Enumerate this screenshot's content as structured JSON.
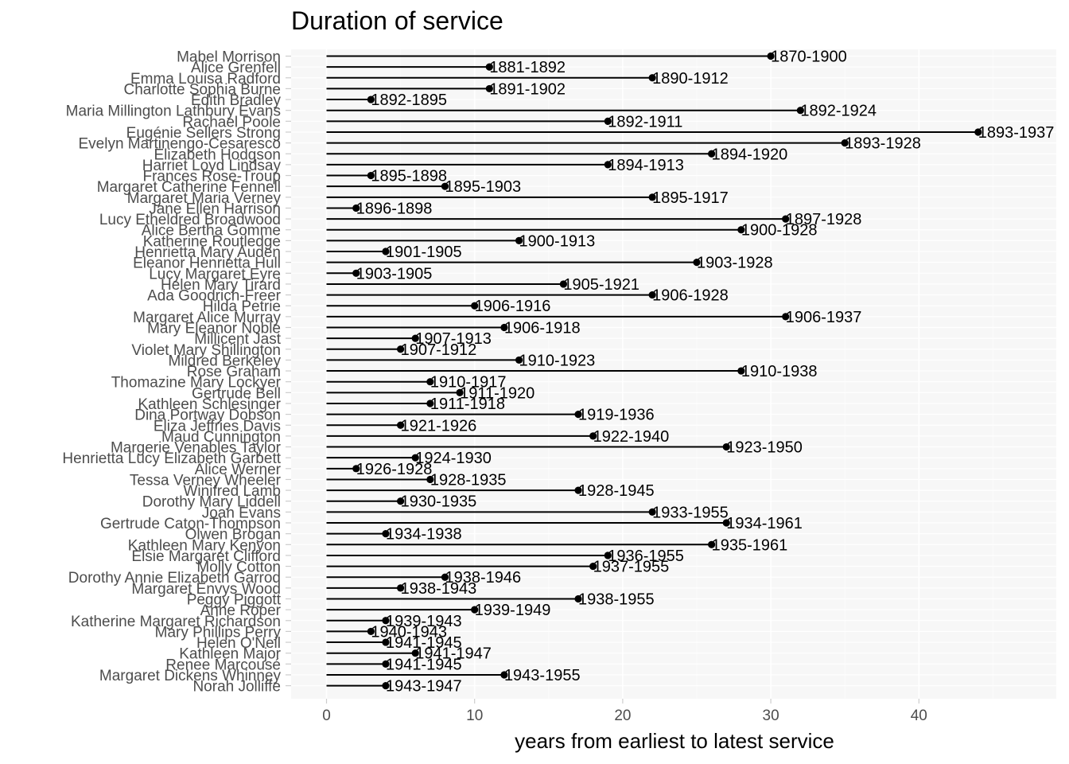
{
  "chart_data": {
    "type": "lollipop",
    "title": "Duration of service",
    "xlabel": "years from earliest to latest service",
    "ylabel": "",
    "xlim": [
      -2.2,
      49
    ],
    "xticks": [
      0,
      10,
      20,
      30,
      40
    ],
    "grid": true,
    "legend": "none",
    "rows": [
      {
        "name": "Mabel Morrison",
        "years": 30,
        "label": "1870-1900"
      },
      {
        "name": "Alice Grenfell",
        "years": 11,
        "label": "1881-1892"
      },
      {
        "name": "Emma Louisa Radford",
        "years": 22,
        "label": "1890-1912"
      },
      {
        "name": "Charlotte Sophia Burne",
        "years": 11,
        "label": "1891-1902"
      },
      {
        "name": "Edith Bradley",
        "years": 3,
        "label": "1892-1895"
      },
      {
        "name": "Maria Millington Lathbury Evans",
        "years": 32,
        "label": "1892-1924"
      },
      {
        "name": "Rachael Poole",
        "years": 19,
        "label": "1892-1911"
      },
      {
        "name": "Eugénie Sellers Strong",
        "years": 44,
        "label": "1893-1937"
      },
      {
        "name": "Evelyn Martinengo-Cesaresco",
        "years": 35,
        "label": "1893-1928"
      },
      {
        "name": "Elizabeth Hodgson",
        "years": 26,
        "label": "1894-1920"
      },
      {
        "name": "Harriet Loyd Lindsay",
        "years": 19,
        "label": "1894-1913"
      },
      {
        "name": "Frances Rose-Troup",
        "years": 3,
        "label": "1895-1898"
      },
      {
        "name": "Margaret Catherine Fennell",
        "years": 8,
        "label": "1895-1903"
      },
      {
        "name": "Margaret Maria Verney",
        "years": 22,
        "label": "1895-1917"
      },
      {
        "name": "Jane Ellen Harrison",
        "years": 2,
        "label": "1896-1898"
      },
      {
        "name": "Lucy Etheldred Broadwood",
        "years": 31,
        "label": "1897-1928"
      },
      {
        "name": "Alice Bertha Gomme",
        "years": 28,
        "label": "1900-1928"
      },
      {
        "name": "Katherine Routledge",
        "years": 13,
        "label": "1900-1913"
      },
      {
        "name": "Henrietta Mary Auden",
        "years": 4,
        "label": "1901-1905"
      },
      {
        "name": "Eleanor Henrietta Hull",
        "years": 25,
        "label": "1903-1928"
      },
      {
        "name": "Lucy Margaret Eyre",
        "years": 2,
        "label": "1903-1905"
      },
      {
        "name": "Helen Mary Tirard",
        "years": 16,
        "label": "1905-1921"
      },
      {
        "name": "Ada Goodrich-Freer",
        "years": 22,
        "label": "1906-1928"
      },
      {
        "name": "Hilda Petrie",
        "years": 10,
        "label": "1906-1916"
      },
      {
        "name": "Margaret Alice Murray",
        "years": 31,
        "label": "1906-1937"
      },
      {
        "name": "Mary Eleanor Noble",
        "years": 12,
        "label": "1906-1918"
      },
      {
        "name": "Millicent Jast",
        "years": 6,
        "label": "1907-1913"
      },
      {
        "name": "Violet Mary Shillington",
        "years": 5,
        "label": "1907-1912"
      },
      {
        "name": "Mildred Berkeley",
        "years": 13,
        "label": "1910-1923"
      },
      {
        "name": "Rose Graham",
        "years": 28,
        "label": "1910-1938"
      },
      {
        "name": "Thomazine Mary Lockyer",
        "years": 7,
        "label": "1910-1917"
      },
      {
        "name": "Gertrude Bell",
        "years": 9,
        "label": "1911-1920"
      },
      {
        "name": "Kathleen Schlesinger",
        "years": 7,
        "label": "1911-1918"
      },
      {
        "name": "Dina Portway Dobson",
        "years": 17,
        "label": "1919-1936"
      },
      {
        "name": "Eliza Jeffries Davis",
        "years": 5,
        "label": "1921-1926"
      },
      {
        "name": "Maud Cunnington",
        "years": 18,
        "label": "1922-1940"
      },
      {
        "name": "Margerie Venables Taylor",
        "years": 27,
        "label": "1923-1950"
      },
      {
        "name": "Henrietta Lucy Elizabeth Garbett",
        "years": 6,
        "label": "1924-1930"
      },
      {
        "name": "Alice Werner",
        "years": 2,
        "label": "1926-1928"
      },
      {
        "name": "Tessa Verney Wheeler",
        "years": 7,
        "label": "1928-1935"
      },
      {
        "name": "Winifred Lamb",
        "years": 17,
        "label": "1928-1945"
      },
      {
        "name": "Dorothy Mary Liddell",
        "years": 5,
        "label": "1930-1935"
      },
      {
        "name": "Joan Evans",
        "years": 22,
        "label": "1933-1955"
      },
      {
        "name": "Gertrude Caton-Thompson",
        "years": 27,
        "label": "1934-1961"
      },
      {
        "name": "Olwen Brogan",
        "years": 4,
        "label": "1934-1938"
      },
      {
        "name": "Kathleen Mary Kenyon",
        "years": 26,
        "label": "1935-1961"
      },
      {
        "name": "Elsie Margaret Clifford",
        "years": 19,
        "label": "1936-1955"
      },
      {
        "name": "Molly Cotton",
        "years": 18,
        "label": "1937-1955"
      },
      {
        "name": "Dorothy Annie Elizabeth Garrod",
        "years": 8,
        "label": "1938-1946"
      },
      {
        "name": "Margaret Envys Wood",
        "years": 5,
        "label": "1938-1943"
      },
      {
        "name": "Peggy Piggott",
        "years": 17,
        "label": "1938-1955"
      },
      {
        "name": "Anne Roper",
        "years": 10,
        "label": "1939-1949"
      },
      {
        "name": "Katherine Margaret Richardson",
        "years": 4,
        "label": "1939-1943"
      },
      {
        "name": "Mary Phillips Perry",
        "years": 3,
        "label": "1940-1943"
      },
      {
        "name": "Helen O'Neil",
        "years": 4,
        "label": "1941-1945"
      },
      {
        "name": "Kathleen Major",
        "years": 6,
        "label": "1941-1947"
      },
      {
        "name": "Renee Marcousé",
        "years": 4,
        "label": "1941-1945"
      },
      {
        "name": "Margaret Dickens Whinney",
        "years": 12,
        "label": "1943-1955"
      },
      {
        "name": "Norah Jolliffe",
        "years": 4,
        "label": "1943-1947"
      }
    ],
    "colors": {
      "panel": "#f7f7f7",
      "grid_major": "#ffffff",
      "grid_minor": "#fbfbfb",
      "segment": "#000000",
      "point": "#000000",
      "axis_text": "#4d4d4d",
      "tick": "#cccccc"
    }
  }
}
